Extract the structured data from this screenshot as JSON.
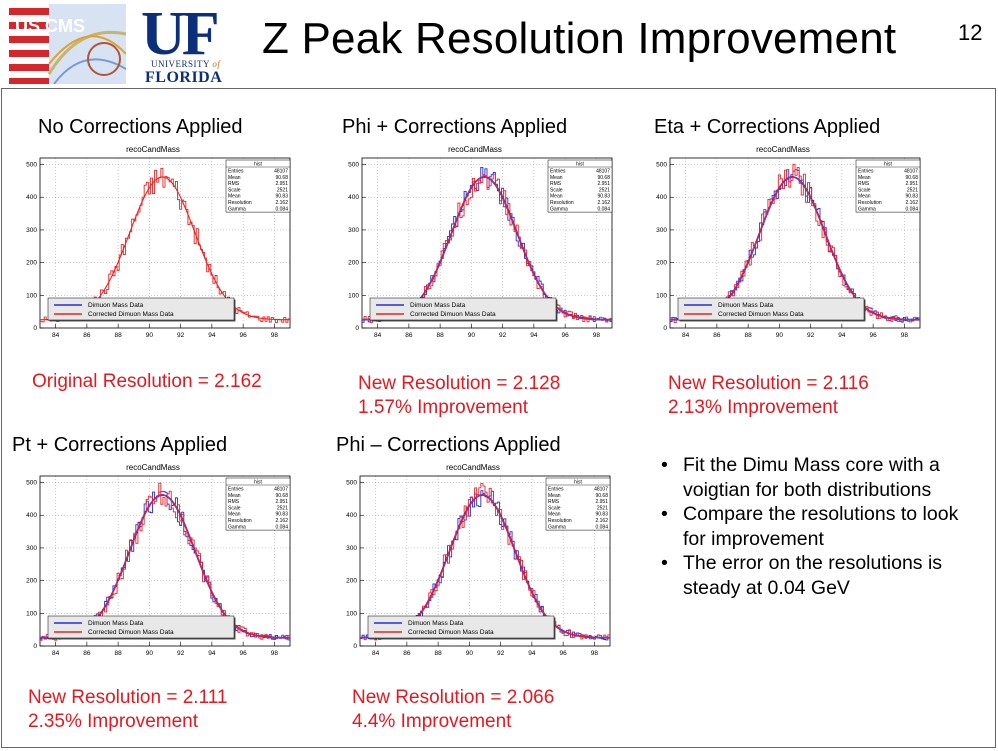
{
  "header": {
    "title": "Z Peak Resolution Improvement",
    "page_number": "12",
    "logo_left_text": "US CMS",
    "logo_right_big": "UF",
    "logo_right_line1": "UNIVERSITY",
    "logo_right_of": "of",
    "logo_right_line2": "FLORIDA"
  },
  "panels": [
    {
      "title": "No Corrections Applied",
      "resolution": "Original Resolution = 2.162",
      "improvement": "",
      "corrected_only": true
    },
    {
      "title": "Phi + Corrections Applied",
      "resolution": "New Resolution = 2.128",
      "improvement": "1.57% Improvement",
      "corrected_only": false
    },
    {
      "title": "Eta + Corrections Applied",
      "resolution": "New Resolution = 2.116",
      "improvement": "2.13% Improvement",
      "corrected_only": false
    },
    {
      "title": "Pt + Corrections Applied",
      "resolution": "New Resolution = 2.111",
      "improvement": "2.35% Improvement",
      "corrected_only": false
    },
    {
      "title": "Phi – Corrections Applied",
      "resolution": "New Resolution = 2.066",
      "improvement": "4.4% Improvement",
      "corrected_only": false
    }
  ],
  "plot_common": {
    "plot_title": "recoCandMass",
    "stats_title": "hist",
    "stats": [
      {
        "label": "Entries",
        "value": "48107"
      },
      {
        "label": "Mean",
        "value": "90.68"
      },
      {
        "label": "RMS",
        "value": "2.951"
      },
      {
        "label": "Scale",
        "value": "2521"
      },
      {
        "label": "Mean",
        "value": "90.83"
      },
      {
        "label": "Resolution",
        "value": "2.162"
      },
      {
        "label": "Gamma",
        "value": "0.084"
      }
    ],
    "legend": [
      "Dimuon Mass Data",
      "Corrected Dimuon Mass Data"
    ],
    "series_colors": {
      "data": "#2a2adf",
      "corrected": "#ee2222"
    }
  },
  "chart_data": {
    "type": "line",
    "xlim": [
      83,
      99
    ],
    "ylim": [
      0,
      520
    ],
    "x_ticks": [
      84,
      86,
      88,
      90,
      92,
      94,
      96,
      98
    ],
    "y_ticks": [
      0,
      100,
      200,
      300,
      400,
      500
    ],
    "fit_peak": 90.83,
    "fit_height": 462,
    "background_level": 25,
    "grid": true
  },
  "notes": {
    "bullets": [
      "Fit the Dimu Mass core with a voigtian for both distributions",
      "Compare the resolutions to look for improvement",
      "The error on the resolutions is steady at 0.04 GeV"
    ]
  }
}
